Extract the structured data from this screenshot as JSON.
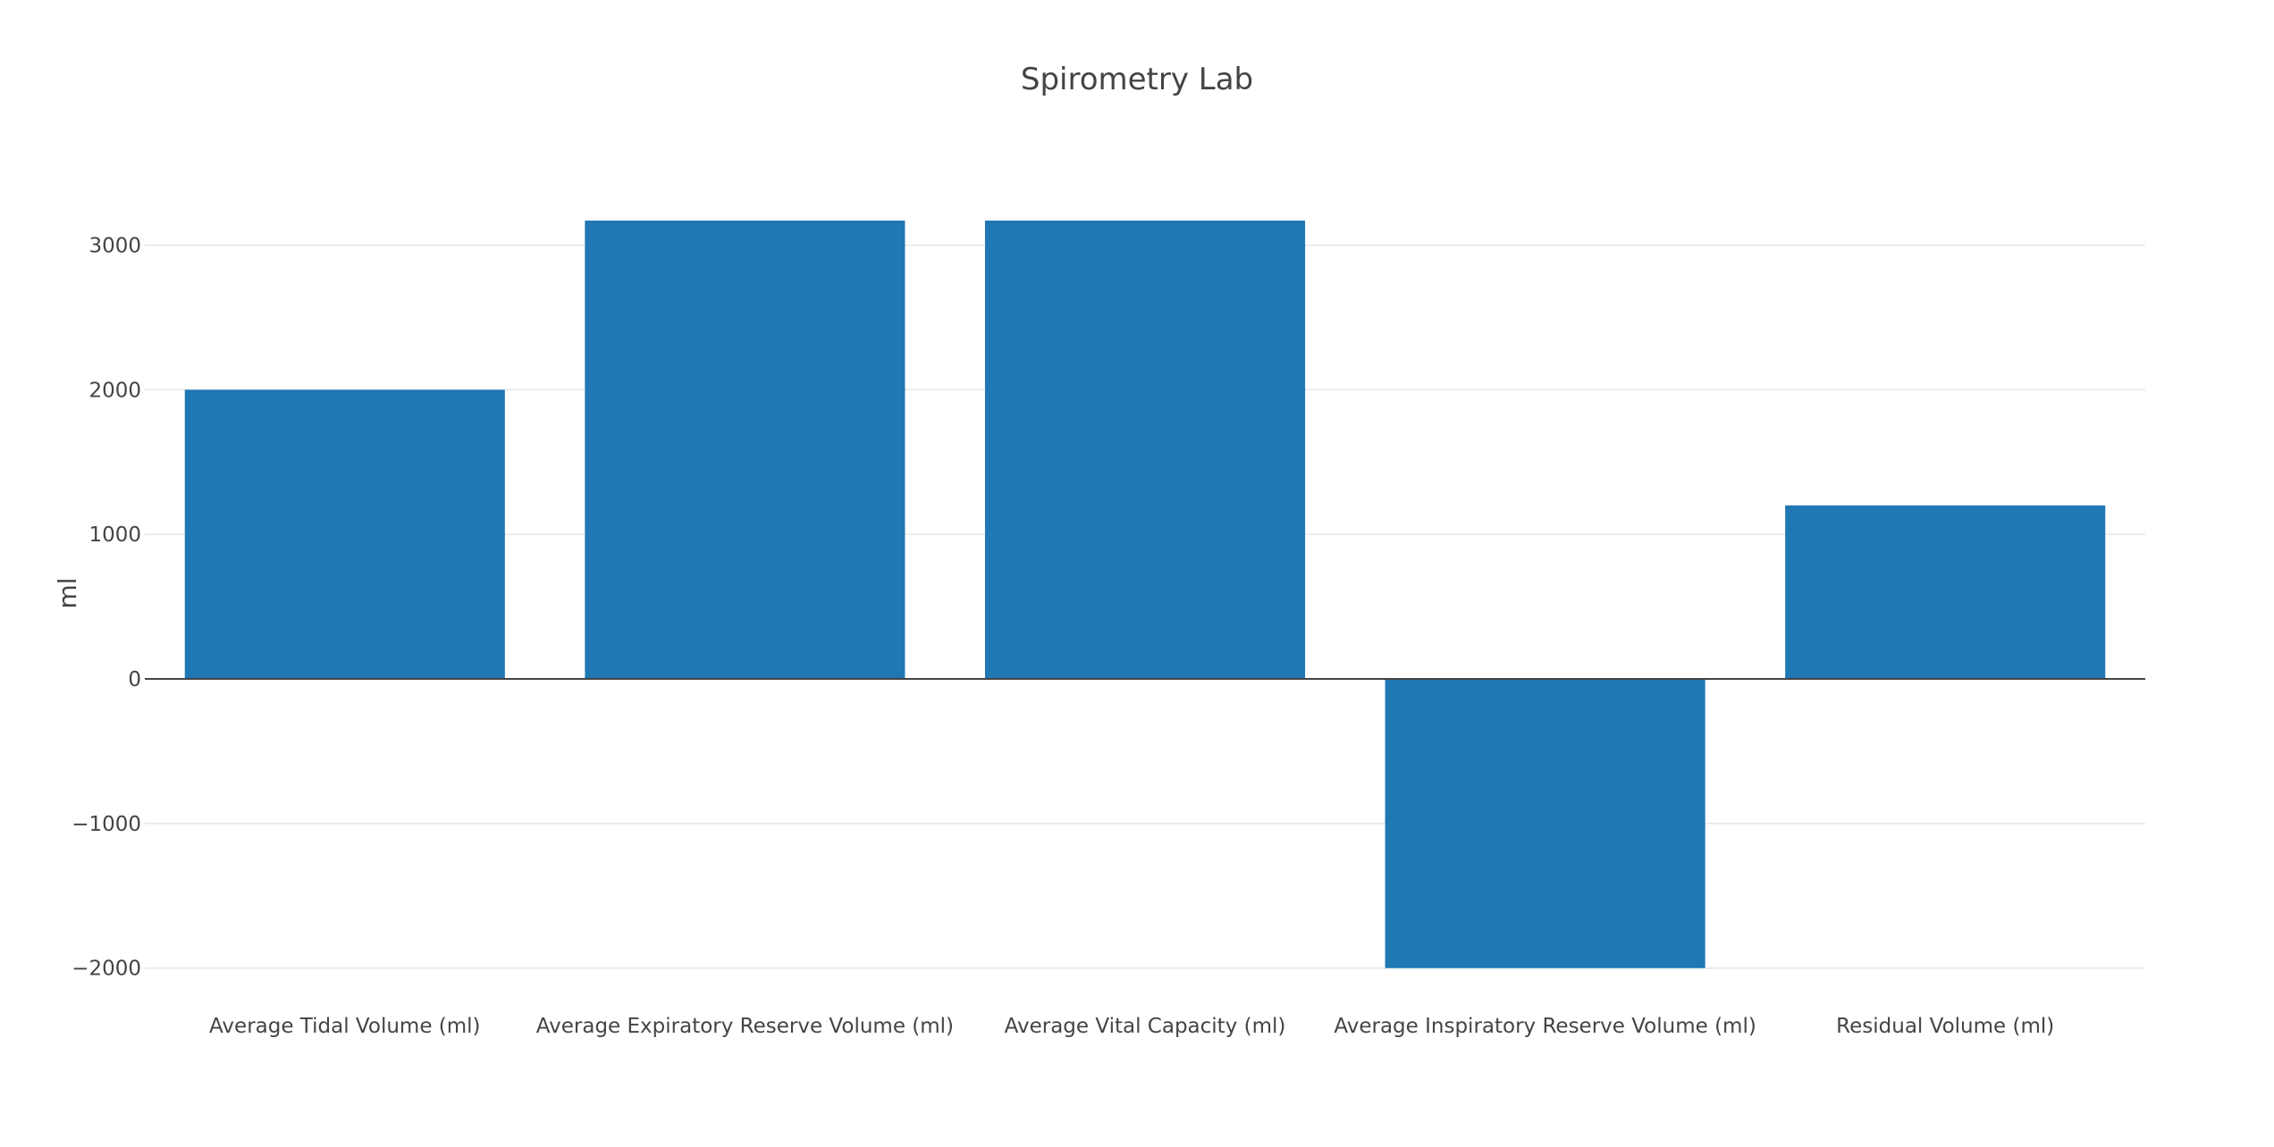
{
  "chart_data": {
    "type": "bar",
    "title": "Spirometry Lab",
    "xlabel": "",
    "ylabel": "ml",
    "categories": [
      "Average Tidal Volume (ml)",
      "Average Expiratory Reserve Volume (ml)",
      "Average Vital Capacity (ml)",
      "Average Inspiratory Reserve Volume (ml)",
      "Residual Volume (ml)"
    ],
    "values": [
      2000,
      3170,
      3170,
      -2000,
      1200
    ],
    "ylim": [
      -2000,
      3500
    ],
    "yticks": [
      -2000,
      -1000,
      0,
      1000,
      2000,
      3000
    ],
    "ytick_labels": [
      "−2000",
      "−1000",
      "0",
      "1000",
      "2000",
      "3000"
    ],
    "grid": true,
    "legend": "none",
    "bar_color": "#1f77b4"
  }
}
